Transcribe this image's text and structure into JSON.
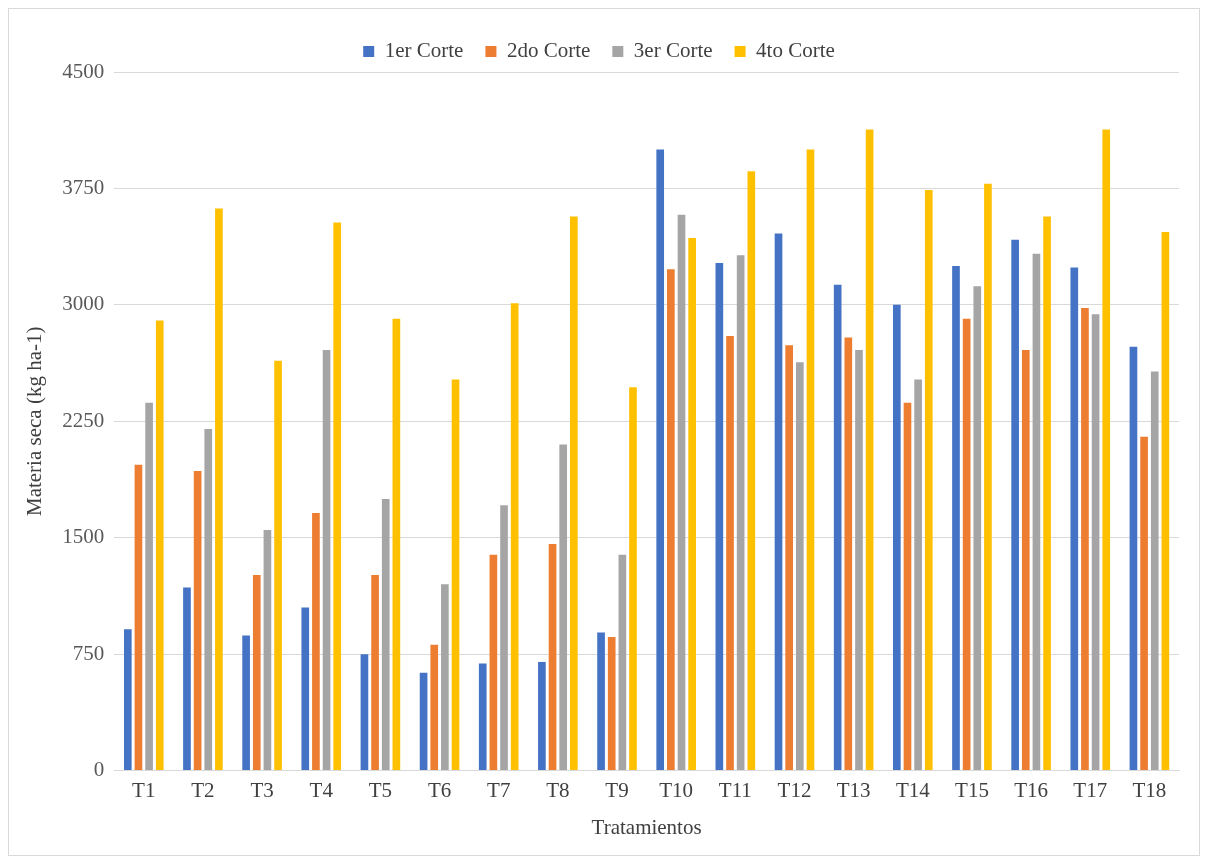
{
  "chart_data": {
    "type": "bar",
    "xlabel": "Tratamientos",
    "ylabel": "Materia seca (kg ha-1)",
    "categories": [
      "T1",
      "T2",
      "T3",
      "T4",
      "T5",
      "T6",
      "T7",
      "T8",
      "T9",
      "T10",
      "T11",
      "T12",
      "T13",
      "T14",
      "T15",
      "T16",
      "T17",
      "T18"
    ],
    "series": [
      {
        "name": "1er Corte",
        "color": "#4472c4",
        "values": [
          910,
          1180,
          870,
          1050,
          750,
          630,
          690,
          700,
          890,
          4000,
          3270,
          3460,
          3130,
          3000,
          3250,
          3420,
          3240,
          2730
        ]
      },
      {
        "name": "2do Corte",
        "color": "#ed7d31",
        "values": [
          1970,
          1930,
          1260,
          1660,
          1260,
          810,
          1390,
          1460,
          860,
          3230,
          2800,
          2740,
          2790,
          2370,
          2910,
          2710,
          2980,
          2150
        ]
      },
      {
        "name": "3er Corte",
        "color": "#a5a5a5",
        "values": [
          2370,
          2200,
          1550,
          2710,
          1750,
          1200,
          1710,
          2100,
          1390,
          3580,
          3320,
          2630,
          2710,
          2520,
          3120,
          3330,
          2940,
          2570
        ]
      },
      {
        "name": "4to Corte",
        "color": "#ffc000",
        "values": [
          2900,
          3620,
          2640,
          3530,
          2910,
          2520,
          3010,
          3570,
          2470,
          3430,
          3860,
          4000,
          4130,
          3740,
          3780,
          3570,
          4130,
          3470
        ]
      }
    ],
    "ylim": [
      0,
      4500
    ],
    "yticks": [
      0,
      750,
      1500,
      2250,
      3000,
      3750,
      4500
    ],
    "grid": "y",
    "legend": "top"
  }
}
